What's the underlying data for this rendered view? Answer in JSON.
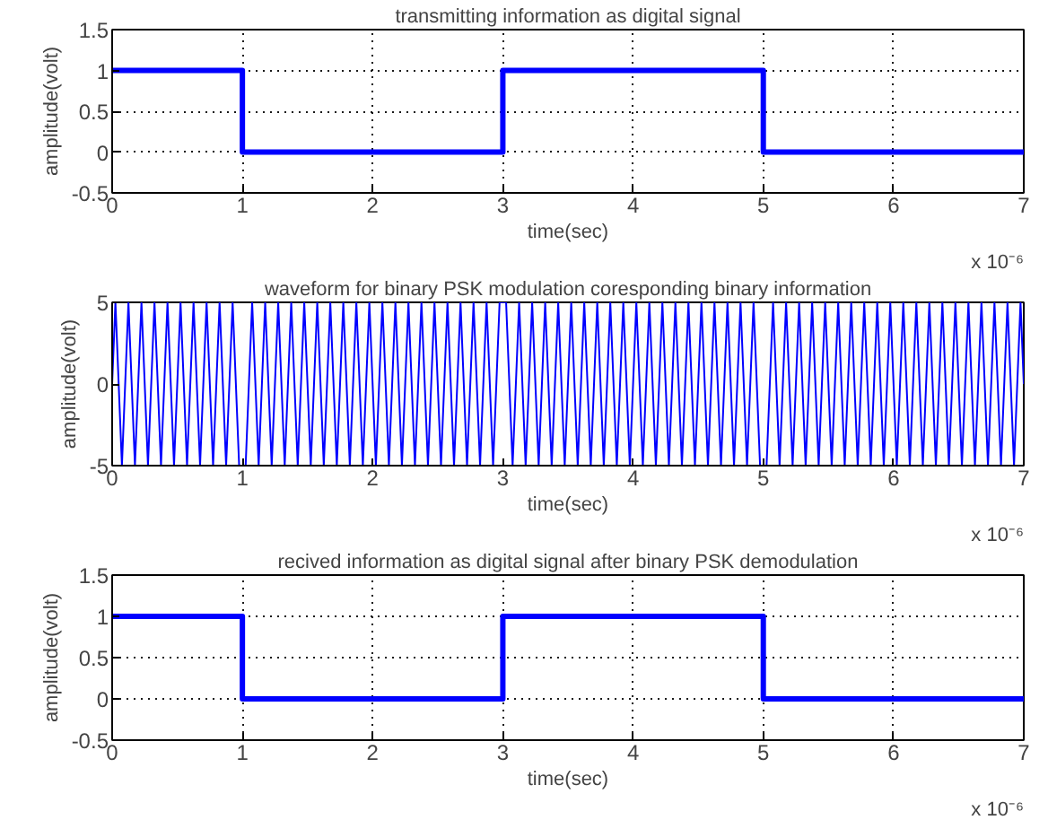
{
  "chart_data": [
    {
      "type": "line",
      "title": "transmitting information as digital signal",
      "xlabel": "time(sec)",
      "ylabel": "amplitude(volt)",
      "annotations": [
        "x 10⁻⁶"
      ],
      "xlim": [
        0,
        7
      ],
      "xticks": [
        0,
        1,
        2,
        3,
        4,
        5,
        6,
        7
      ],
      "ylim": [
        -0.5,
        1.5
      ],
      "yticks": [
        -0.5,
        0,
        0.5,
        1,
        1.5
      ],
      "grid": true,
      "series": [
        {
          "color": "#0000ff",
          "x": [
            0,
            1,
            1,
            3,
            3,
            5,
            5,
            7
          ],
          "values": [
            1,
            1,
            0,
            0,
            1,
            1,
            0,
            0
          ]
        }
      ]
    },
    {
      "type": "line",
      "title": "waveform for binary PSK modulation coresponding binary information",
      "xlabel": "time(sec)",
      "ylabel": "amplitude(volt)",
      "annotations": [
        "x 10⁻⁶"
      ],
      "xlim": [
        0,
        7
      ],
      "xticks": [
        0,
        1,
        2,
        3,
        4,
        5,
        6,
        7
      ],
      "ylim": [
        -5,
        5
      ],
      "yticks": [
        -5,
        0,
        5
      ],
      "series": [
        {
          "color": "#0000ff",
          "x": [
            0,
            0.025,
            0.075,
            0.125,
            0.175,
            0.225,
            0.275,
            0.325,
            0.375,
            0.425,
            0.475,
            0.525,
            0.575,
            0.625,
            0.675,
            0.725,
            0.775,
            0.825,
            0.875,
            0.925,
            0.975,
            1.025,
            1.075,
            1.125,
            1.175,
            1.225,
            1.275,
            1.325,
            1.375,
            1.425,
            1.475,
            1.525,
            1.575,
            1.625,
            1.675,
            1.725,
            1.775,
            1.825,
            1.875,
            1.925,
            1.975,
            2.025,
            2.075,
            2.125,
            2.175,
            2.225,
            2.275,
            2.325,
            2.375,
            2.425,
            2.475,
            2.525,
            2.575,
            2.625,
            2.675,
            2.725,
            2.775,
            2.825,
            2.875,
            2.925,
            2.975,
            3.025,
            3.075,
            3.125,
            3.175,
            3.225,
            3.275,
            3.325,
            3.375,
            3.425,
            3.475,
            3.525,
            3.575,
            3.625,
            3.675,
            3.725,
            3.775,
            3.825,
            3.875,
            3.925,
            3.975,
            4.025,
            4.075,
            4.125,
            4.175,
            4.225,
            4.275,
            4.325,
            4.375,
            4.425,
            4.475,
            4.525,
            4.575,
            4.625,
            4.675,
            4.725,
            4.775,
            4.825,
            4.875,
            4.925,
            4.975,
            5.025,
            5.075,
            5.125,
            5.175,
            5.225,
            5.275,
            5.325,
            5.375,
            5.425,
            5.475,
            5.525,
            5.575,
            5.625,
            5.675,
            5.725,
            5.775,
            5.825,
            5.875,
            5.925,
            5.975,
            6.025,
            6.075,
            6.125,
            6.175,
            6.225,
            6.275,
            6.325,
            6.375,
            6.425,
            6.475,
            6.525,
            6.575,
            6.625,
            6.675,
            6.725,
            6.775,
            6.825,
            6.875,
            6.925,
            6.975,
            7
          ],
          "values": [
            0,
            5,
            -5,
            5,
            -5,
            5,
            -5,
            5,
            -5,
            5,
            -5,
            5,
            -5,
            5,
            -5,
            5,
            -5,
            5,
            -5,
            5,
            -5,
            -5,
            5,
            -5,
            5,
            -5,
            5,
            -5,
            5,
            -5,
            5,
            -5,
            5,
            -5,
            5,
            -5,
            5,
            -5,
            5,
            -5,
            5,
            -5,
            5,
            -5,
            5,
            -5,
            5,
            -5,
            5,
            -5,
            5,
            -5,
            5,
            -5,
            5,
            -5,
            5,
            -5,
            5,
            -5,
            5,
            5,
            -5,
            5,
            -5,
            5,
            -5,
            5,
            -5,
            5,
            -5,
            5,
            -5,
            5,
            -5,
            5,
            -5,
            5,
            -5,
            5,
            -5,
            5,
            -5,
            5,
            -5,
            5,
            -5,
            5,
            -5,
            5,
            -5,
            5,
            -5,
            5,
            -5,
            5,
            -5,
            5,
            -5,
            5,
            -5,
            -5,
            5,
            -5,
            5,
            -5,
            5,
            -5,
            5,
            -5,
            5,
            -5,
            5,
            -5,
            5,
            -5,
            5,
            -5,
            5,
            -5,
            5,
            -5,
            5,
            -5,
            5,
            -5,
            5,
            -5,
            5,
            -5,
            5,
            -5,
            5,
            -5,
            5,
            -5,
            5,
            -5,
            5,
            -5,
            5,
            0
          ]
        }
      ]
    },
    {
      "type": "line",
      "title": "recived information as digital signal after binary PSK demodulation",
      "xlabel": "time(sec)",
      "ylabel": "amplitude(volt)",
      "annotations": [
        "x 10⁻⁶"
      ],
      "xlim": [
        0,
        7
      ],
      "xticks": [
        0,
        1,
        2,
        3,
        4,
        5,
        6,
        7
      ],
      "ylim": [
        -0.5,
        1.5
      ],
      "yticks": [
        -0.5,
        0,
        0.5,
        1,
        1.5
      ],
      "grid": true,
      "series": [
        {
          "color": "#0000ff",
          "x": [
            0,
            1,
            1,
            3,
            3,
            5,
            5,
            7
          ],
          "values": [
            1,
            1,
            0,
            0,
            1,
            1,
            0,
            0
          ]
        }
      ]
    }
  ]
}
